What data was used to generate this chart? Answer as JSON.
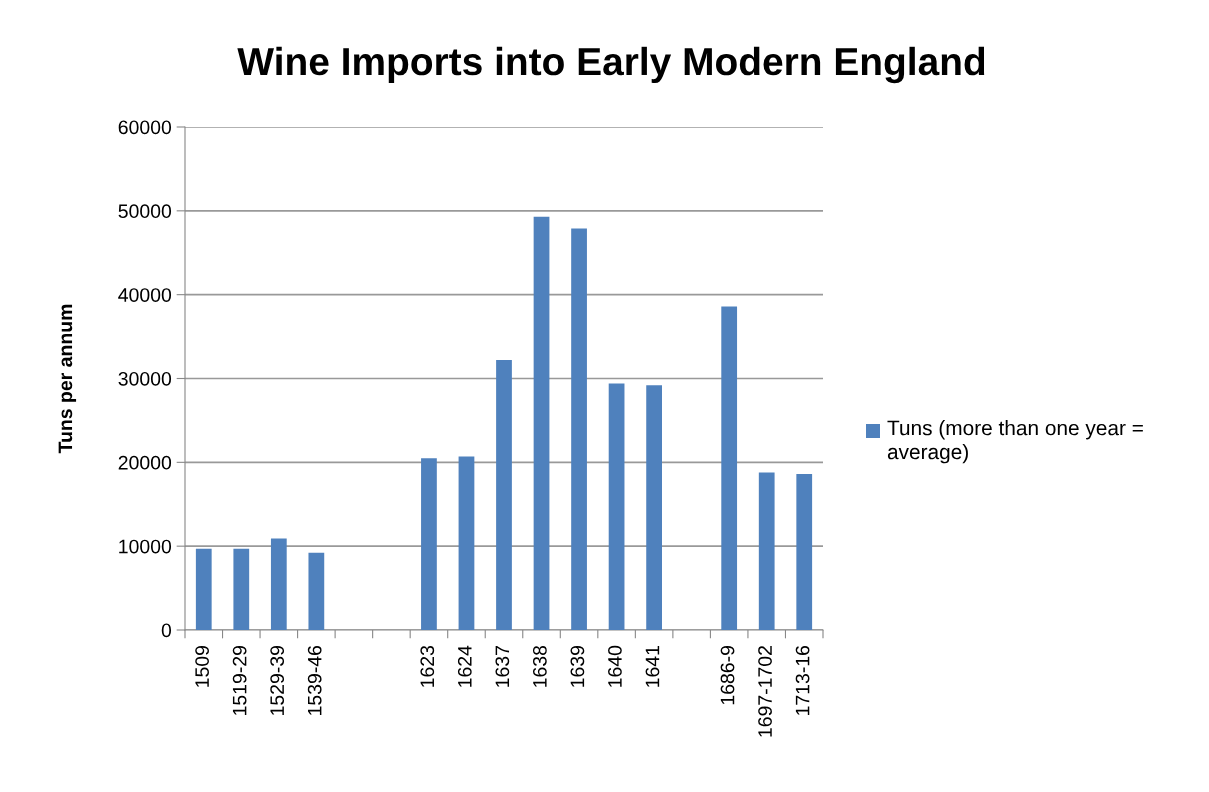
{
  "chart_data": {
    "type": "bar",
    "title": "Wine Imports into Early Modern England",
    "ylabel": "Tuns per annum",
    "categories": [
      "1509",
      "1519-29",
      "1529-39",
      "1539-46",
      null,
      null,
      "1623",
      "1624",
      "1637",
      "1638",
      "1639",
      "1640",
      "1641",
      null,
      "1686-9",
      "1697-1702",
      "1713-16"
    ],
    "series": [
      {
        "name": "Tuns (more than one year = average)",
        "color": "#4f81bd",
        "values": [
          9700,
          9700,
          10900,
          9200,
          null,
          null,
          20500,
          20700,
          32200,
          49300,
          47900,
          29400,
          29200,
          null,
          38600,
          18800,
          18600
        ]
      }
    ],
    "ylim": [
      0,
      60000
    ],
    "yticks": [
      0,
      10000,
      20000,
      30000,
      40000,
      50000,
      60000
    ],
    "grid": "y",
    "legend": "right"
  }
}
